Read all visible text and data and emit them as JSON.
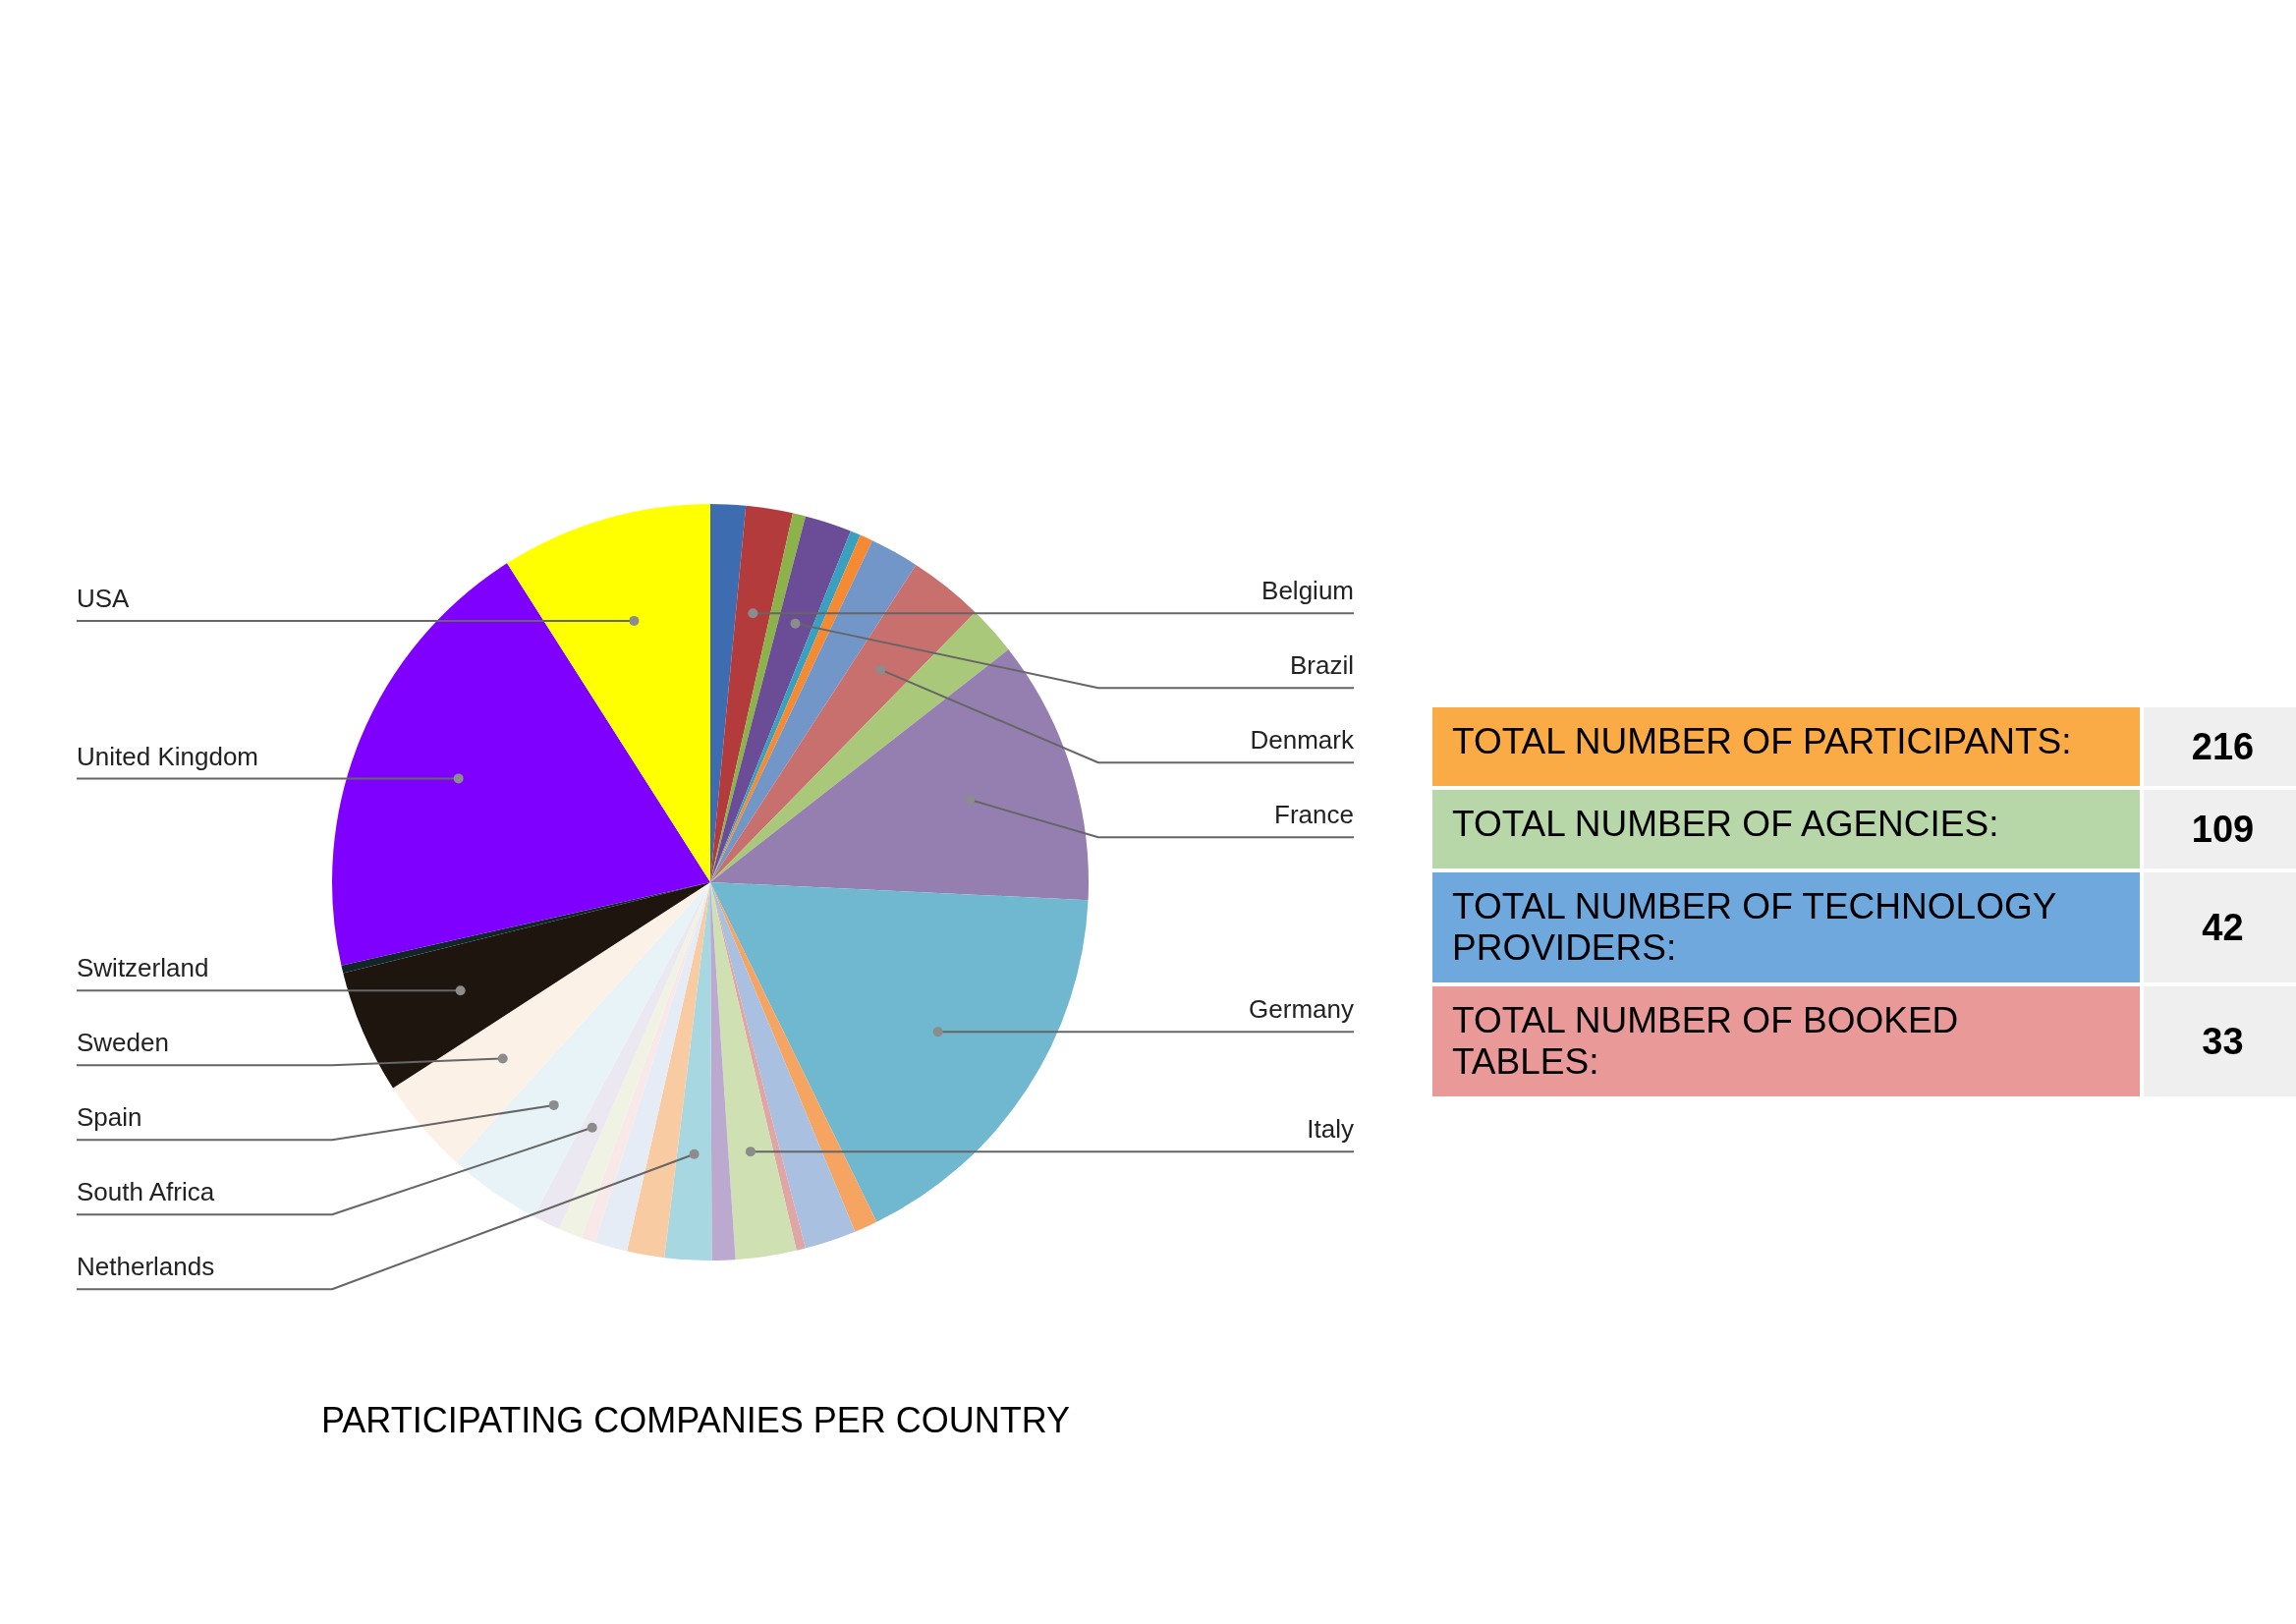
{
  "chart_data": [
    {
      "type": "pie",
      "title": "PARTICIPATING COMPANIES PER COUNTRY",
      "categories": [
        null,
        "Belgium",
        null,
        "Brazil",
        null,
        null,
        null,
        "Denmark",
        null,
        "France",
        "Germany",
        null,
        null,
        null,
        "Italy",
        null,
        "Netherlands",
        null,
        null,
        null,
        null,
        "South Africa",
        "Spain",
        "Sweden",
        "Switzerland",
        null,
        "United Kingdom",
        "USA"
      ],
      "values": [
        1.5,
        2.0,
        0.55,
        2.0,
        0.44,
        0.56,
        2.1,
        3.2,
        2.1,
        11.3,
        17.0,
        1.0,
        2.2,
        0.39,
        2.6,
        1.0,
        2.0,
        1.6,
        1.4,
        0.6,
        1.0,
        1.2,
        4.0,
        4.1,
        5.3,
        0.33,
        19.5,
        9.03
      ],
      "colors": [
        "#3d6db0",
        "#b33b3b",
        "#8cb34a",
        "#6b4c96",
        "#3aa0c0",
        "#f58a33",
        "#7396c8",
        "#c8706e",
        "#aac87a",
        "#957eb0",
        "#70b8cf",
        "#f5a462",
        "#a9c0e0",
        "#e0a5a5",
        "#cfe1b2",
        "#bca9cf",
        "#a7d8e2",
        "#f9cba3",
        "#e6ecf5",
        "#f8e9e8",
        "#f0f3e4",
        "#ece8f2",
        "#e7f3f6",
        "#fcf1e7",
        "#1e160e",
        "#12262a",
        "#8000ff",
        "#ffff00"
      ]
    },
    {
      "type": "other",
      "annotations": [
        "TOTAL NUMBER OF PARTICIPANTS:",
        "216",
        "TOTAL NUMBER OF AGENCIES:",
        "109",
        "TOTAL NUMBER OF TECHNOLOGY PROVIDERS:",
        "42",
        "TOTAL NUMBER OF BOOKED TABLES:",
        "33"
      ]
    }
  ]
}
